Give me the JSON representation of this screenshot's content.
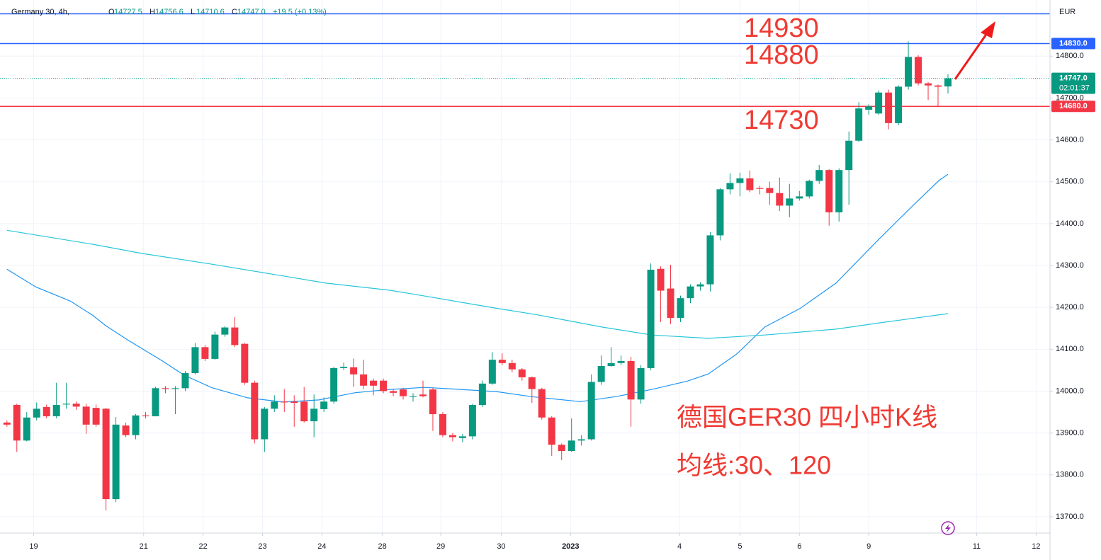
{
  "header": {
    "title": "Germany 30, 4h,",
    "ohlc": [
      {
        "k": "O",
        "v": "14727.5"
      },
      {
        "k": "H",
        "v": "14756.6"
      },
      {
        "k": "L",
        "v": "14710.6"
      },
      {
        "k": "C",
        "v": "14747.0"
      }
    ],
    "change": "+19.5 (+0.13%)"
  },
  "currency": "EUR",
  "annotations": {
    "level_top": "14930",
    "level_mid": "14880",
    "level_low": "14730",
    "caption": "德国GER30 四小时K线",
    "ma_note": "均线:30、120"
  },
  "chart_data": {
    "type": "candlestick",
    "up_color": "#089981",
    "down_color": "#f23645",
    "x": [
      0,
      1,
      2,
      3,
      4,
      5,
      6,
      7,
      8,
      9,
      10,
      11,
      12,
      13,
      14,
      15,
      16,
      17,
      18,
      19,
      20,
      21,
      22,
      23,
      24,
      25,
      26,
      27,
      28,
      29,
      30,
      31,
      32,
      33,
      34,
      35,
      36,
      37,
      38,
      39,
      40,
      41,
      42,
      43,
      44,
      45,
      46,
      47,
      48,
      49,
      50,
      51,
      52,
      53,
      54,
      55,
      56,
      57,
      58,
      59,
      60,
      61,
      62,
      63,
      64,
      65,
      66,
      67,
      68,
      69,
      70,
      71,
      72,
      73,
      74,
      75,
      76,
      77,
      78,
      79,
      80,
      81,
      82,
      83,
      84,
      85,
      86,
      87,
      88,
      89,
      90,
      91,
      92,
      93,
      94,
      95
    ],
    "open": [
      13925,
      13967,
      13882,
      13937,
      13962,
      13940,
      13968,
      13970,
      13963,
      13960,
      13958,
      13742,
      13918,
      13895,
      13942,
      13940,
      14007,
      14005,
      14007,
      14043,
      14105,
      14077,
      14135,
      14152,
      14113,
      14020,
      13885,
      13958,
      13975,
      13975,
      13975,
      13928,
      13957,
      13975,
      14055,
      14057,
      14040,
      14025,
      14025,
      14000,
      14004,
      13988,
      13992,
      14004,
      13945,
      13895,
      13888,
      13892,
      13967,
      14018,
      14075,
      14067,
      14052,
      14033,
      14005,
      13937,
      13872,
      13857,
      13882,
      13885,
      14022,
      14060,
      14067,
      14072,
      13980,
      14055,
      14292,
      14245,
      14175,
      14222,
      14250,
      14255,
      14372,
      14482,
      14497,
      14508,
      14485,
      14485,
      14473,
      14443,
      14460,
      14465,
      14502,
      14528,
      14427,
      14528,
      14598,
      14672,
      14663,
      14713,
      14640,
      14727,
      14798,
      14735,
      14730,
      14727.5
    ],
    "high": [
      13930,
      13970,
      13950,
      13973,
      13968,
      14020,
      14020,
      13975,
      13970,
      13968,
      13960,
      13938,
      13925,
      13945,
      13950,
      14010,
      14012,
      14012,
      14048,
      14115,
      14110,
      14142,
      14155,
      14177,
      14115,
      14025,
      13962,
      13990,
      14005,
      13990,
      14010,
      13992,
      13985,
      14058,
      14068,
      14078,
      14075,
      14030,
      14030,
      14005,
      14008,
      13995,
      14025,
      14008,
      13950,
      13900,
      13898,
      13970,
      14025,
      14093,
      14090,
      14075,
      14055,
      14035,
      14008,
      13940,
      13875,
      13935,
      13895,
      14040,
      14085,
      14105,
      14085,
      14082,
      14062,
      14305,
      14298,
      14302,
      14228,
      14255,
      14260,
      14380,
      14485,
      14520,
      14522,
      14527,
      14490,
      14500,
      14510,
      14495,
      14478,
      14505,
      14540,
      14530,
      14532,
      14620,
      14690,
      14685,
      14718,
      14720,
      14730,
      14835,
      14802,
      14738,
      14732,
      14756.6
    ],
    "low": [
      13915,
      13855,
      13880,
      13930,
      13935,
      13935,
      13958,
      13955,
      13898,
      13915,
      13715,
      13735,
      13890,
      13885,
      13935,
      13940,
      13995,
      13945,
      14000,
      14040,
      14072,
      14075,
      14130,
      14105,
      14015,
      13875,
      13855,
      13950,
      13950,
      13915,
      13925,
      13890,
      13950,
      13970,
      14050,
      14010,
      14005,
      13990,
      13995,
      13988,
      13980,
      13975,
      13985,
      13905,
      13890,
      13880,
      13878,
      13885,
      13962,
      14015,
      14062,
      14045,
      14025,
      13972,
      13932,
      13845,
      13835,
      13855,
      13870,
      13882,
      14015,
      14058,
      14062,
      13915,
      13970,
      14050,
      14165,
      14160,
      14165,
      14210,
      14240,
      14238,
      14360,
      14470,
      14465,
      14475,
      14470,
      14445,
      14430,
      14415,
      14455,
      14460,
      14495,
      14395,
      14405,
      14445,
      14595,
      14660,
      14660,
      14625,
      14635,
      14720,
      14730,
      14695,
      14680,
      14710.6
    ],
    "close": [
      13920,
      13882,
      13937,
      13958,
      13940,
      13967,
      13970,
      13963,
      13920,
      13920,
      13742,
      13920,
      13895,
      13942,
      13940,
      14007,
      14005,
      14007,
      14043,
      14105,
      14077,
      14135,
      14152,
      14110,
      14020,
      13885,
      13958,
      13975,
      13973,
      13972,
      13928,
      13958,
      13975,
      14055,
      14058,
      14040,
      14013,
      14013,
      14000,
      13996,
      13988,
      13988,
      13988,
      13945,
      13895,
      13890,
      13892,
      13967,
      14018,
      14075,
      14067,
      14052,
      14033,
      14005,
      13937,
      13872,
      13857,
      13882,
      13885,
      14022,
      14060,
      14067,
      14072,
      13980,
      14055,
      14290,
      14240,
      14175,
      14222,
      14250,
      14255,
      14372,
      14482,
      14497,
      14508,
      14480,
      14483,
      14473,
      14443,
      14460,
      14465,
      14502,
      14528,
      14427,
      14528,
      14598,
      14675,
      14680,
      14713,
      14640,
      14727,
      14798,
      14735,
      14730,
      14727,
      14747
    ],
    "lines": [
      {
        "color": "#2196f3",
        "x": [
          0,
          2.9,
          6.4,
          8.6,
          10,
          12.2,
          15.7,
          17.9,
          20.7,
          24.3,
          27.9,
          31.5,
          35.1,
          38.6,
          42.2,
          45.8,
          49.4,
          52.9,
          57.9,
          61.5,
          65.1,
          68.7,
          70.8,
          73.7,
          76.5,
          80.1,
          83.7,
          88,
          91.5,
          94.1,
          95
        ],
        "values": [
          14291,
          14249,
          14215,
          14182,
          14156,
          14122,
          14072,
          14038,
          14008,
          13984,
          13974,
          13979,
          13996,
          14004,
          14009,
          14004,
          13999,
          13987,
          13975,
          13987,
          14004,
          14024,
          14041,
          14089,
          14153,
          14198,
          14258,
          14362,
          14444,
          14503,
          14518
        ]
      },
      {
        "color": "#26c6da",
        "x": [
          0,
          8.6,
          13.6,
          20.7,
          27.9,
          32.2,
          38.6,
          42.2,
          49.4,
          53.6,
          60.1,
          65.1,
          70.8,
          76.5,
          83.7,
          88.7,
          95
        ],
        "values": [
          14384,
          14351,
          14329,
          14303,
          14275,
          14258,
          14241,
          14227,
          14198,
          14182,
          14153,
          14134,
          14126,
          14134,
          14148,
          14165,
          14185
        ]
      }
    ],
    "hlines": [
      {
        "value": 14901,
        "color": "#2962ff",
        "style": "solid"
      },
      {
        "value": 14830,
        "color": "#2962ff",
        "style": "solid"
      },
      {
        "value": 14747,
        "color": "#089981",
        "style": "dotted"
      },
      {
        "value": 14680,
        "color": "#f23645",
        "style": "solid"
      }
    ],
    "price_labels": [
      {
        "value": 14830,
        "label": "14830.0",
        "color": "#2962ff"
      },
      {
        "value": 14747,
        "label": "14747.0",
        "sub": "02:01:37",
        "color": "#089981"
      },
      {
        "value": 14680,
        "label": "14680.0",
        "color": "#f23645"
      }
    ],
    "xlim": [
      -0.7,
      105.3
    ],
    "ylim": [
      13661,
      14934
    ],
    "yticks": [
      {
        "value": 13700,
        "label": "13700.0"
      },
      {
        "value": 13800,
        "label": "13800.0"
      },
      {
        "value": 13900,
        "label": "13900.0"
      },
      {
        "value": 14000,
        "label": "14000.0"
      },
      {
        "value": 14100,
        "label": "14100.0"
      },
      {
        "value": 14200,
        "label": "14200.0"
      },
      {
        "value": 14300,
        "label": "14300.0"
      },
      {
        "value": 14400,
        "label": "14400.0"
      },
      {
        "value": 14500,
        "label": "14500.0"
      },
      {
        "value": 14600,
        "label": "14600.0"
      },
      {
        "value": 14700,
        "label": "14700.0"
      },
      {
        "value": 14800,
        "label": "14800.0"
      }
    ],
    "xticks": [
      {
        "value": 2.7,
        "label": "19"
      },
      {
        "value": 13.8,
        "label": "21"
      },
      {
        "value": 19.8,
        "label": "22"
      },
      {
        "value": 25.8,
        "label": "23"
      },
      {
        "value": 31.8,
        "label": "24"
      },
      {
        "value": 37.9,
        "label": "28"
      },
      {
        "value": 43.8,
        "label": "29"
      },
      {
        "value": 49.9,
        "label": "30"
      },
      {
        "value": 56.9,
        "label": "2023"
      },
      {
        "value": 67.9,
        "label": "4"
      },
      {
        "value": 74.0,
        "label": "5"
      },
      {
        "value": 80.0,
        "label": "6"
      },
      {
        "value": 87.0,
        "label": "9"
      },
      {
        "value": 97.9,
        "label": "11"
      },
      {
        "value": 103.9,
        "label": "12"
      }
    ],
    "grid": true
  }
}
